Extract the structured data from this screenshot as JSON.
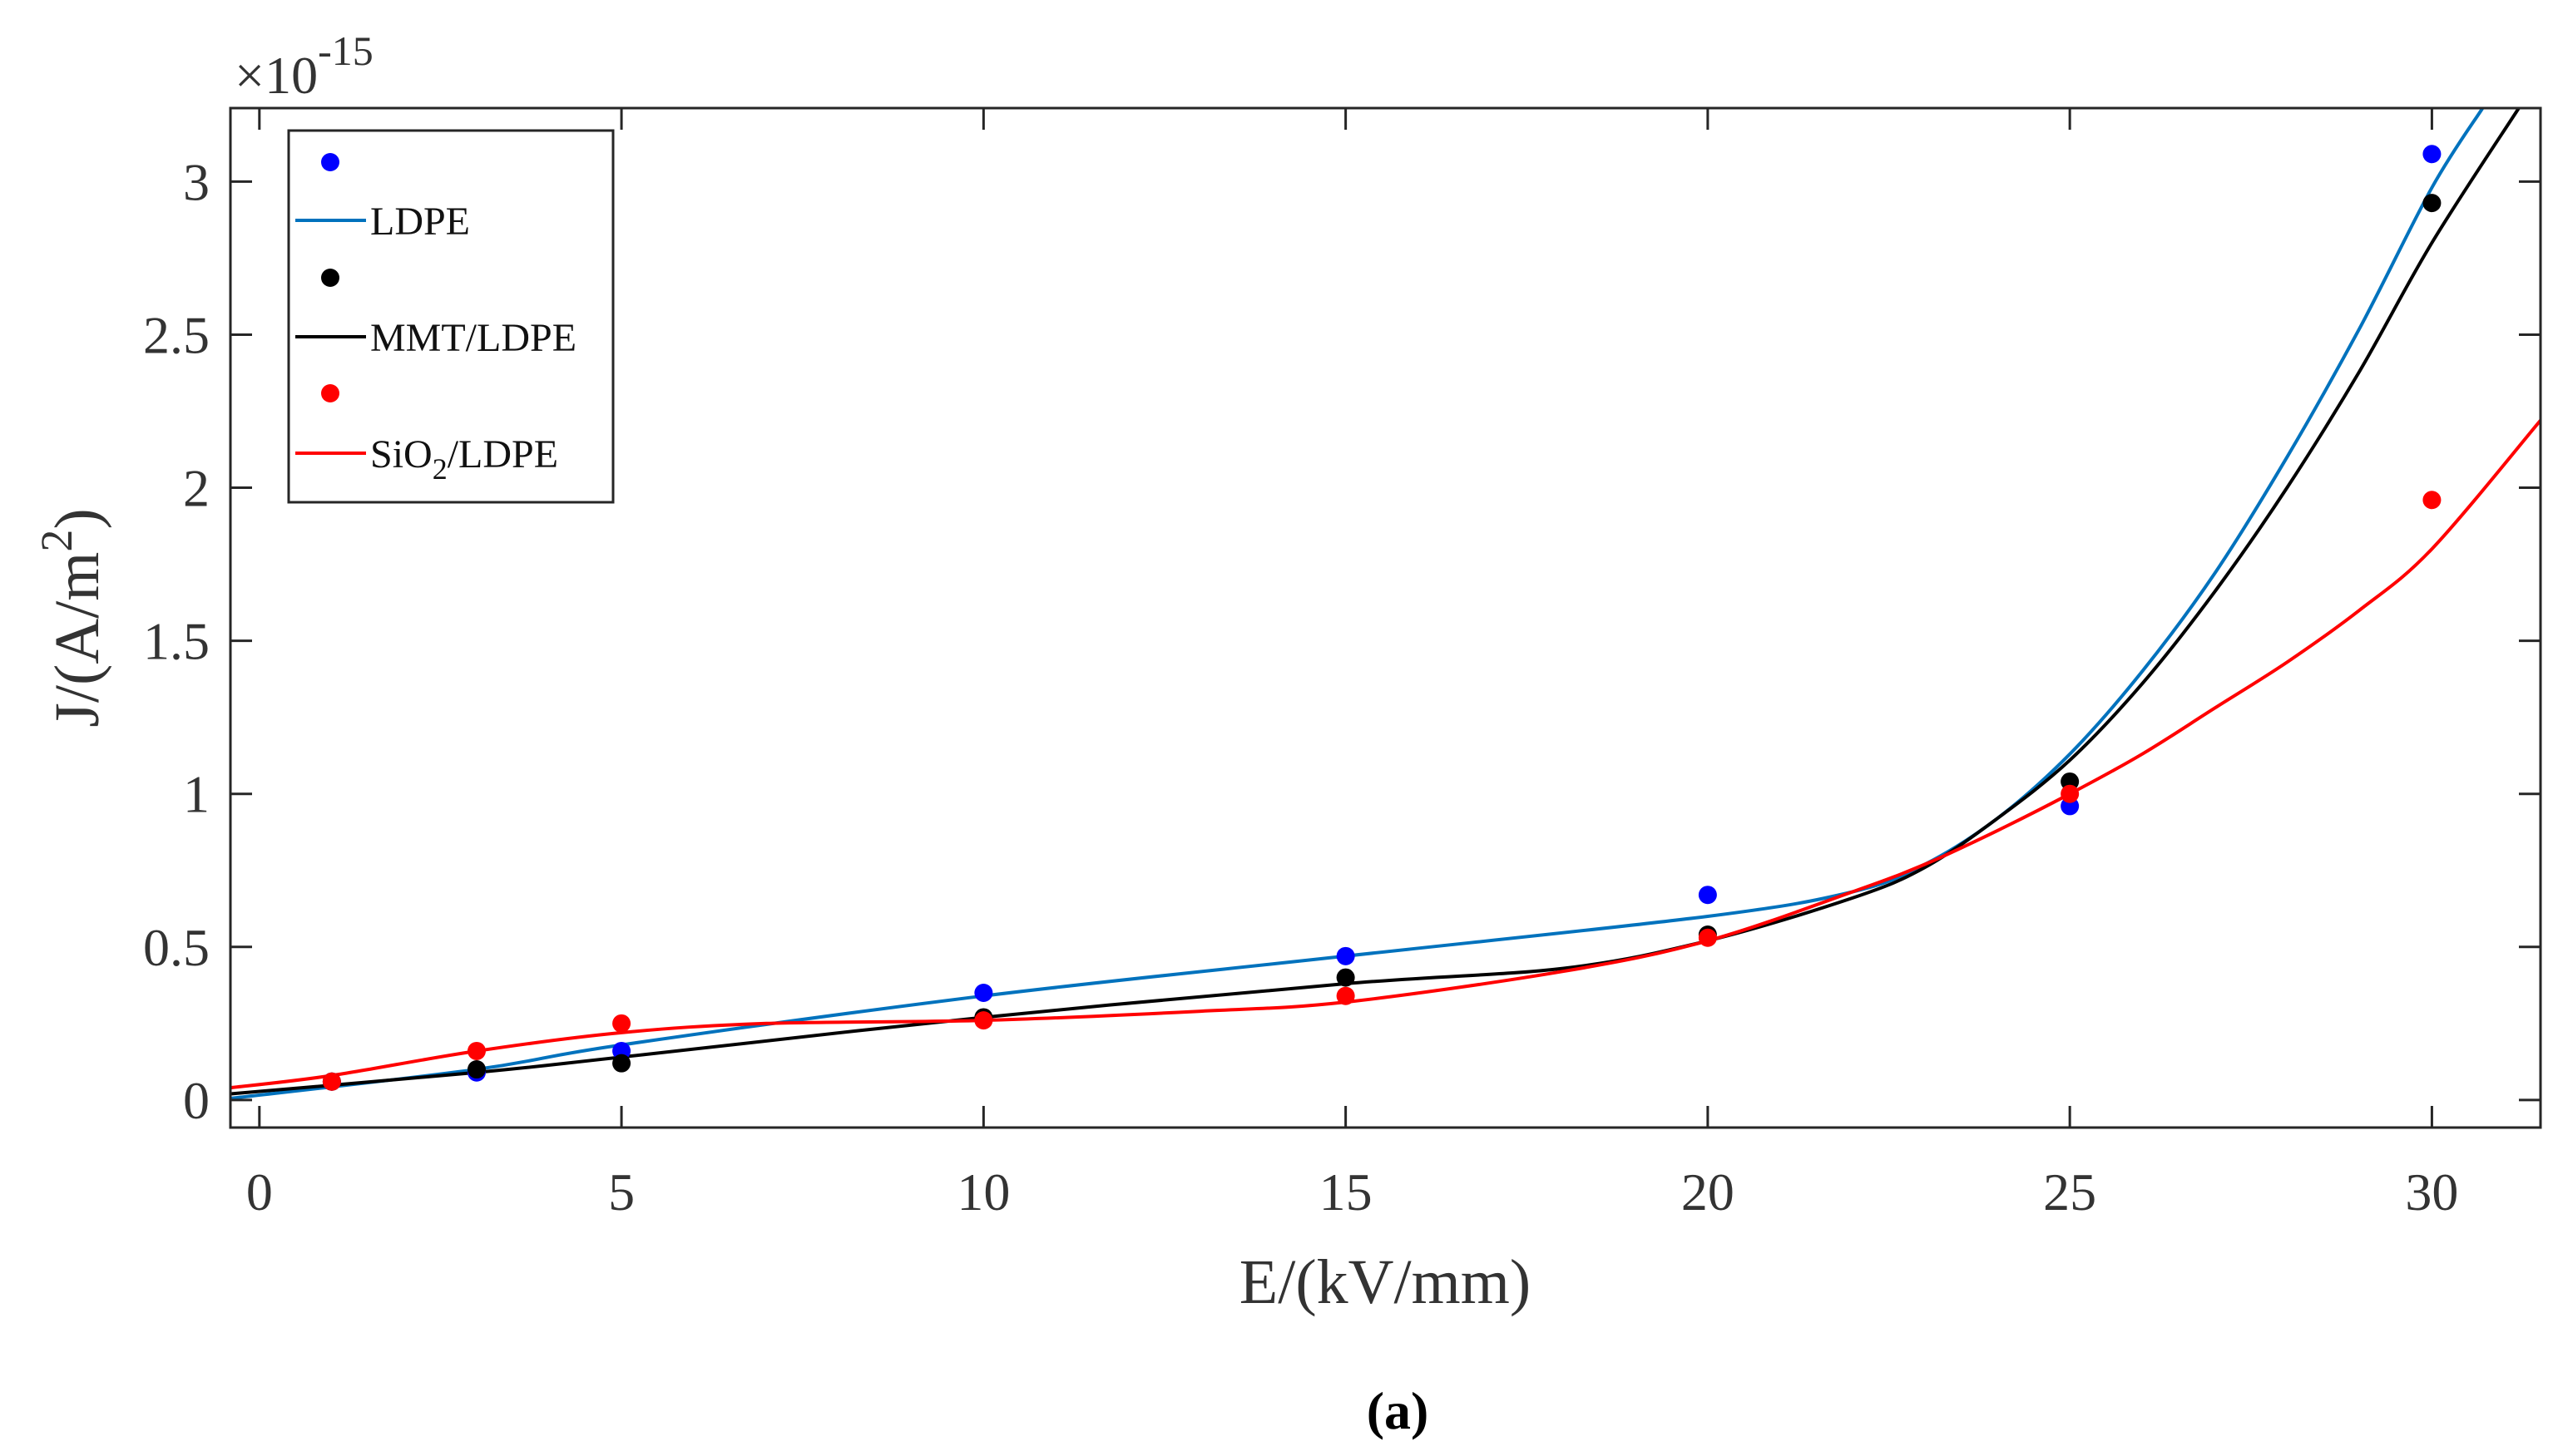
{
  "chart_data": {
    "type": "scatter",
    "x_label": "E/(kV/mm)",
    "y_label_main": "J/(A/m",
    "y_label_sup": "2",
    "y_label_end": ")",
    "exponent_prefix": "×10",
    "exponent_value": "-15",
    "caption": "(a)",
    "xlim": [
      -0.4,
      31.5
    ],
    "ylim": [
      -0.09,
      3.24
    ],
    "x_ticks": [
      0,
      5,
      10,
      15,
      20,
      25,
      30
    ],
    "y_ticks": [
      0,
      0.5,
      1,
      1.5,
      2,
      2.5,
      3
    ],
    "x_tick_labels": [
      "0",
      "5",
      "10",
      "15",
      "20",
      "25",
      "30"
    ],
    "y_tick_labels": [
      "0",
      "0.5",
      "1",
      "1.5",
      "2",
      "2.5",
      "3"
    ],
    "legend_position": "top-left",
    "series": [
      {
        "name": "LDPE",
        "color": "#0072BD",
        "marker_color": "#0000FF",
        "label_main": "LDPE",
        "label_sub": "",
        "label_rest": "",
        "points": [
          [
            1,
            0.06
          ],
          [
            3,
            0.09
          ],
          [
            5,
            0.16
          ],
          [
            10,
            0.35
          ],
          [
            15,
            0.47
          ],
          [
            20,
            0.67
          ],
          [
            25,
            0.96
          ],
          [
            30,
            3.09
          ]
        ],
        "curve": [
          [
            -0.4,
            0.005
          ],
          [
            3,
            0.1
          ],
          [
            5,
            0.18
          ],
          [
            10,
            0.34
          ],
          [
            15,
            0.47
          ],
          [
            20,
            0.6
          ],
          [
            22,
            0.68
          ],
          [
            23,
            0.77
          ],
          [
            24,
            0.92
          ],
          [
            25,
            1.13
          ],
          [
            26,
            1.4
          ],
          [
            27,
            1.72
          ],
          [
            28,
            2.1
          ],
          [
            29,
            2.52
          ],
          [
            30,
            2.98
          ],
          [
            30.7,
            3.24
          ]
        ]
      },
      {
        "name": "MMT/LDPE",
        "color": "#000000",
        "marker_color": "#000000",
        "label_main": "MMT/LDPE",
        "label_sub": "",
        "label_rest": "",
        "points": [
          [
            1,
            0.06
          ],
          [
            3,
            0.1
          ],
          [
            5,
            0.12
          ],
          [
            10,
            0.27
          ],
          [
            15,
            0.4
          ],
          [
            20,
            0.54
          ],
          [
            25,
            1.04
          ],
          [
            30,
            2.93
          ]
        ],
        "curve": [
          [
            -0.4,
            0.02
          ],
          [
            3,
            0.09
          ],
          [
            5,
            0.14
          ],
          [
            10,
            0.27
          ],
          [
            15,
            0.38
          ],
          [
            18,
            0.43
          ],
          [
            20,
            0.52
          ],
          [
            22,
            0.66
          ],
          [
            23,
            0.76
          ],
          [
            24,
            0.92
          ],
          [
            25,
            1.11
          ],
          [
            26,
            1.36
          ],
          [
            27,
            1.66
          ],
          [
            28,
            2.0
          ],
          [
            29,
            2.38
          ],
          [
            30,
            2.8
          ],
          [
            31.2,
            3.24
          ]
        ]
      },
      {
        "name": "SiO2/LDPE",
        "color": "#FF0000",
        "marker_color": "#FF0000",
        "label_main": "SiO",
        "label_sub": "2",
        "label_rest": "/LDPE",
        "points": [
          [
            1,
            0.06
          ],
          [
            3,
            0.16
          ],
          [
            5,
            0.25
          ],
          [
            10,
            0.26
          ],
          [
            15,
            0.34
          ],
          [
            20,
            0.53
          ],
          [
            25,
            1.0
          ],
          [
            30,
            1.96
          ]
        ],
        "curve": [
          [
            -0.4,
            0.04
          ],
          [
            1,
            0.08
          ],
          [
            3,
            0.16
          ],
          [
            5,
            0.22
          ],
          [
            7,
            0.25
          ],
          [
            10,
            0.26
          ],
          [
            13,
            0.29
          ],
          [
            15,
            0.32
          ],
          [
            18,
            0.42
          ],
          [
            20,
            0.52
          ],
          [
            22,
            0.68
          ],
          [
            23,
            0.77
          ],
          [
            24,
            0.88
          ],
          [
            25,
            1.0
          ],
          [
            26,
            1.13
          ],
          [
            27,
            1.28
          ],
          [
            28,
            1.43
          ],
          [
            29,
            1.6
          ],
          [
            30,
            1.8
          ],
          [
            31.5,
            2.22
          ]
        ]
      }
    ]
  }
}
